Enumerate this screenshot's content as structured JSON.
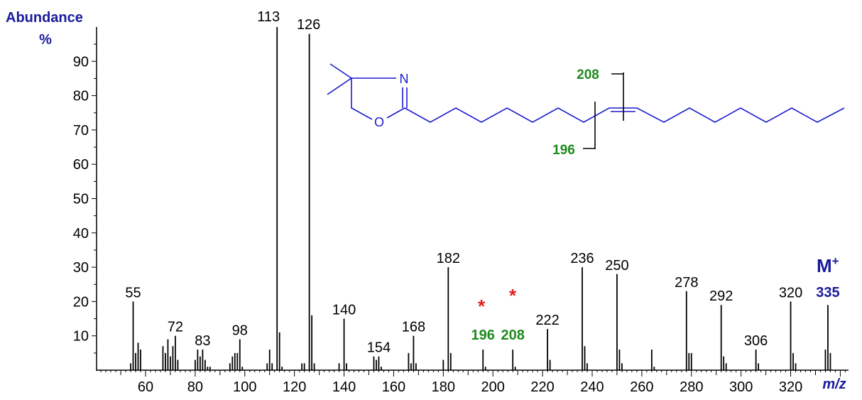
{
  "chart_data": {
    "type": "bar",
    "ylabel_line1": "Abundance",
    "ylabel_line2": "%",
    "xlabel": "m/z",
    "xlim": [
      40,
      342
    ],
    "ylim": [
      0,
      100
    ],
    "x_ticks": [
      60,
      80,
      100,
      120,
      140,
      160,
      180,
      200,
      220,
      240,
      260,
      280,
      300,
      320
    ],
    "y_ticks": [
      10,
      20,
      30,
      40,
      50,
      60,
      70,
      80,
      90
    ],
    "peaks": [
      {
        "mz": 54,
        "y": 2
      },
      {
        "mz": 55,
        "y": 20,
        "label": "55"
      },
      {
        "mz": 56,
        "y": 5
      },
      {
        "mz": 57,
        "y": 8
      },
      {
        "mz": 58,
        "y": 6
      },
      {
        "mz": 67,
        "y": 7
      },
      {
        "mz": 68,
        "y": 5
      },
      {
        "mz": 69,
        "y": 9
      },
      {
        "mz": 70,
        "y": 4
      },
      {
        "mz": 71,
        "y": 7
      },
      {
        "mz": 72,
        "y": 10,
        "label": "72"
      },
      {
        "mz": 73,
        "y": 3
      },
      {
        "mz": 80,
        "y": 3
      },
      {
        "mz": 81,
        "y": 6
      },
      {
        "mz": 82,
        "y": 4
      },
      {
        "mz": 83,
        "y": 6,
        "label": "83"
      },
      {
        "mz": 84,
        "y": 3
      },
      {
        "mz": 85,
        "y": 1
      },
      {
        "mz": 86,
        "y": 1
      },
      {
        "mz": 94,
        "y": 2
      },
      {
        "mz": 95,
        "y": 4
      },
      {
        "mz": 96,
        "y": 5
      },
      {
        "mz": 97,
        "y": 5
      },
      {
        "mz": 98,
        "y": 9,
        "label": "98"
      },
      {
        "mz": 99,
        "y": 1
      },
      {
        "mz": 109,
        "y": 2
      },
      {
        "mz": 110,
        "y": 6
      },
      {
        "mz": 111,
        "y": 2
      },
      {
        "mz": 113,
        "y": 100,
        "label": "113"
      },
      {
        "mz": 114,
        "y": 11
      },
      {
        "mz": 115,
        "y": 1
      },
      {
        "mz": 123,
        "y": 2
      },
      {
        "mz": 124,
        "y": 2
      },
      {
        "mz": 126,
        "y": 98,
        "label": "126"
      },
      {
        "mz": 127,
        "y": 16
      },
      {
        "mz": 128,
        "y": 2
      },
      {
        "mz": 138,
        "y": 2
      },
      {
        "mz": 140,
        "y": 15,
        "label": "140"
      },
      {
        "mz": 141,
        "y": 2
      },
      {
        "mz": 152,
        "y": 4
      },
      {
        "mz": 153,
        "y": 3
      },
      {
        "mz": 154,
        "y": 4,
        "label": "154"
      },
      {
        "mz": 155,
        "y": 1
      },
      {
        "mz": 166,
        "y": 5
      },
      {
        "mz": 167,
        "y": 2
      },
      {
        "mz": 168,
        "y": 10,
        "label": "168"
      },
      {
        "mz": 169,
        "y": 2
      },
      {
        "mz": 180,
        "y": 3
      },
      {
        "mz": 182,
        "y": 30,
        "label": "182"
      },
      {
        "mz": 183,
        "y": 5
      },
      {
        "mz": 196,
        "y": 6,
        "label": "196",
        "label_style": "green"
      },
      {
        "mz": 197,
        "y": 1
      },
      {
        "mz": 208,
        "y": 6,
        "label": "208",
        "label_style": "green"
      },
      {
        "mz": 209,
        "y": 1
      },
      {
        "mz": 222,
        "y": 12,
        "label": "222"
      },
      {
        "mz": 223,
        "y": 3
      },
      {
        "mz": 236,
        "y": 30,
        "label": "236"
      },
      {
        "mz": 237,
        "y": 7
      },
      {
        "mz": 238,
        "y": 2
      },
      {
        "mz": 250,
        "y": 28,
        "label": "250"
      },
      {
        "mz": 251,
        "y": 6
      },
      {
        "mz": 252,
        "y": 2
      },
      {
        "mz": 264,
        "y": 6
      },
      {
        "mz": 265,
        "y": 1
      },
      {
        "mz": 278,
        "y": 23,
        "label": "278"
      },
      {
        "mz": 279,
        "y": 5
      },
      {
        "mz": 280,
        "y": 5
      },
      {
        "mz": 292,
        "y": 19,
        "label": "292"
      },
      {
        "mz": 293,
        "y": 4
      },
      {
        "mz": 294,
        "y": 2
      },
      {
        "mz": 306,
        "y": 6,
        "label": "306"
      },
      {
        "mz": 307,
        "y": 2
      },
      {
        "mz": 320,
        "y": 20,
        "label": "320"
      },
      {
        "mz": 321,
        "y": 5
      },
      {
        "mz": 322,
        "y": 2
      },
      {
        "mz": 334,
        "y": 6
      },
      {
        "mz": 335,
        "y": 19,
        "label": "335",
        "label_style": "blue"
      },
      {
        "mz": 336,
        "y": 5
      }
    ],
    "molecular_ion": {
      "symbol": "M",
      "sup": "+"
    },
    "asterisk_marks": [
      "*",
      "*"
    ],
    "structure": {
      "n_atom": "N",
      "o_atom": "O",
      "fragment_upper": "208",
      "fragment_lower": "196"
    },
    "colors": {
      "axis": "#000000",
      "bars": "#000000",
      "label_blue": "#1a1a9c",
      "label_green": "#1e8a1e",
      "asterisk": "#e02020",
      "structure": "#1a1ad0"
    }
  }
}
